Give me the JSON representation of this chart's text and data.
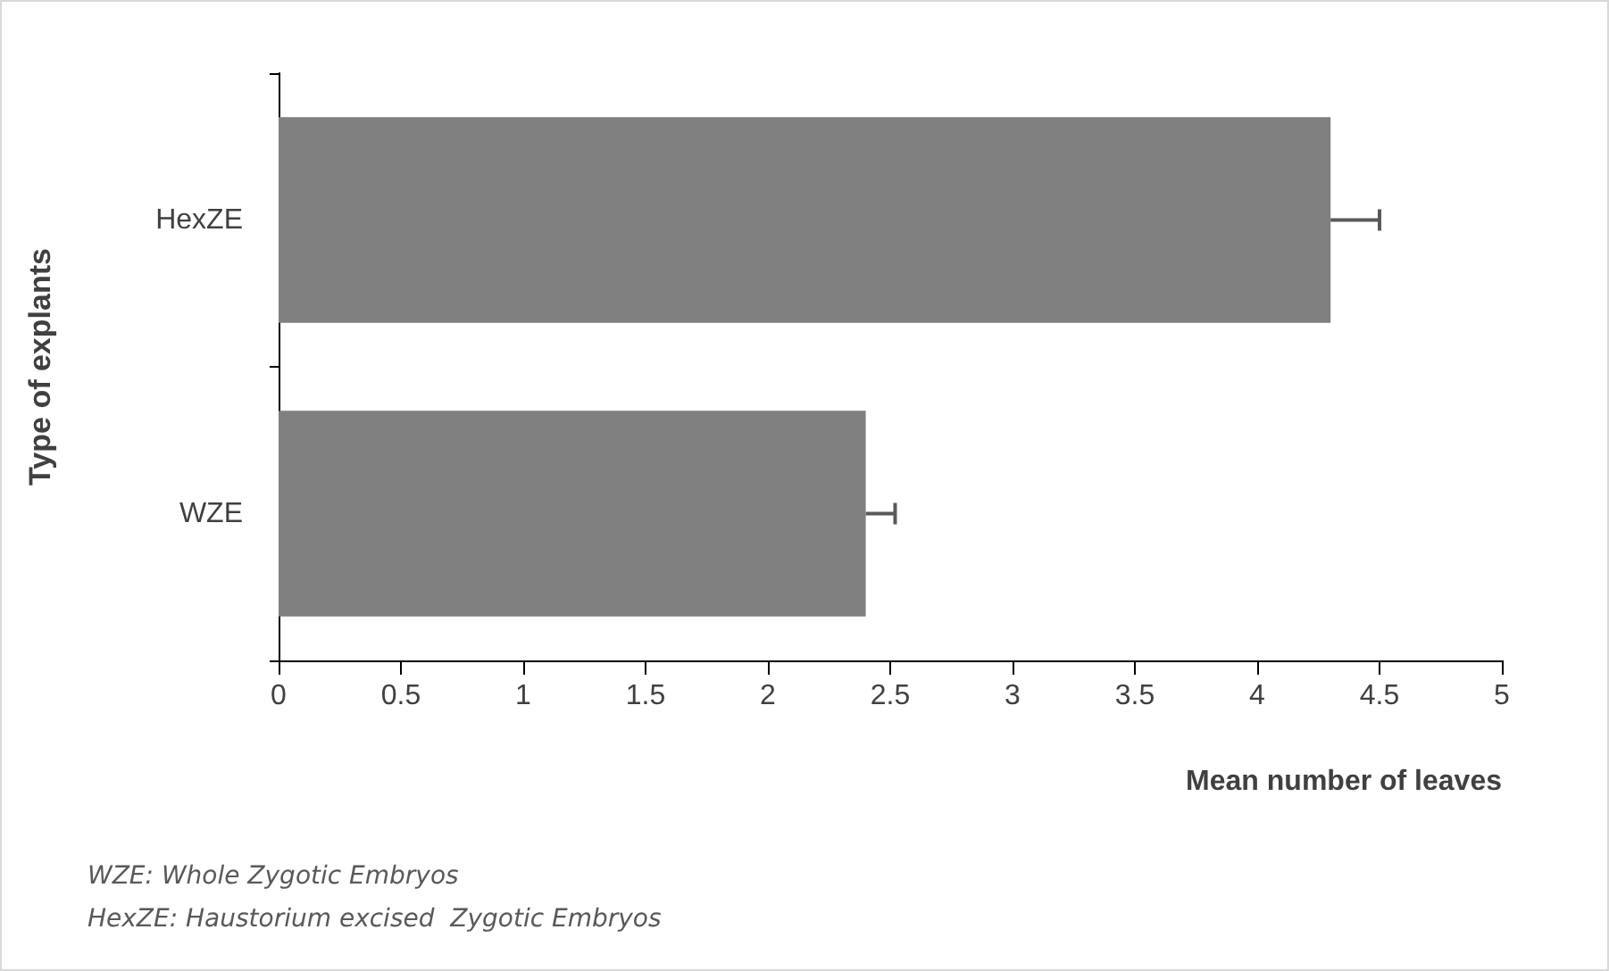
{
  "chart_data": {
    "type": "bar",
    "orientation": "horizontal",
    "categories": [
      "HexZE",
      "WZE"
    ],
    "values": [
      4.3,
      2.4
    ],
    "color": "#808080",
    "errors": [
      [
        4.3,
        4.5
      ],
      [
        2.4,
        2.52
      ]
    ],
    "xlim": [
      0,
      5
    ],
    "xticks": [
      0,
      0.5,
      1,
      1.5,
      2,
      2.5,
      3,
      3.5,
      4,
      4.5,
      5
    ],
    "xlabel": "Mean number of leaves",
    "ylabel": "Type of explants",
    "grid": false,
    "annotations": [
      "WZE: Whole Zygotic Embryos",
      "HexZE: Haustorium excised  Zygotic Embryos"
    ]
  }
}
